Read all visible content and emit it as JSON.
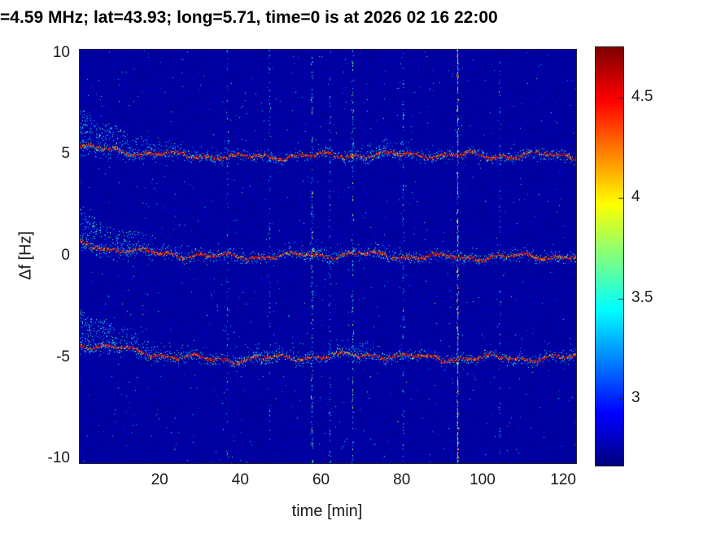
{
  "chart_data": {
    "type": "heatmap",
    "title": "=4.59 MHz;  lat=43.93; long=5.71, time=0 is at 2026 02 16 22:00",
    "xlabel": "time [min]",
    "ylabel": "Δf [Hz]",
    "xlim": [
      0,
      123
    ],
    "ylim": [
      -10.2,
      10.2
    ],
    "xticks": [
      20,
      40,
      60,
      80,
      100,
      120
    ],
    "yticks": [
      10,
      5,
      0,
      -5,
      -10
    ],
    "grid": false,
    "colormap": "jet",
    "colorbar": {
      "vmin": 2.67,
      "vmax": 4.75,
      "ticks": [
        4.5,
        4,
        3.5,
        3
      ],
      "position": "right"
    },
    "background_value": 2.73,
    "traces": [
      {
        "name": "upper-sideband-trace",
        "base_hz": 5,
        "drift_hz": [
          5.45,
          5.2,
          5.05,
          4.95,
          4.92,
          4.95,
          5.0,
          5.02,
          5.05,
          5.0,
          4.98,
          5.02,
          5.0
        ],
        "early_cloud": true,
        "bursts": [
          {
            "t": 74,
            "w": 5,
            "amp": 0.7
          }
        ]
      },
      {
        "name": "carrier-trace",
        "base_hz": 0,
        "drift_hz": [
          0.6,
          0.35,
          0.15,
          0.05,
          0.0,
          0.05,
          0.12,
          0.1,
          0.02,
          -0.03,
          0.0,
          0.02,
          0.0
        ],
        "early_cloud": true,
        "bursts": [
          {
            "t": 58,
            "w": 5,
            "amp": 0.5
          },
          {
            "t": 76,
            "w": 4,
            "amp": 0.4
          }
        ]
      },
      {
        "name": "lower-sideband-trace",
        "base_hz": -5,
        "drift_hz": [
          -4.3,
          -4.55,
          -4.85,
          -5.05,
          -5.08,
          -5.0,
          -4.9,
          -4.85,
          -4.95,
          -5.02,
          -5.0,
          -5.0,
          -4.98
        ],
        "early_cloud": true,
        "bursts": [
          {
            "t": 47,
            "w": 6,
            "amp": 0.5
          },
          {
            "t": 69,
            "w": 5,
            "amp": 0.6
          }
        ]
      }
    ],
    "streaks": [
      {
        "t": 36.5,
        "intensity": 0.18
      },
      {
        "t": 47,
        "intensity": 0.15
      },
      {
        "t": 57.5,
        "intensity": 0.55
      },
      {
        "t": 62,
        "intensity": 0.2
      },
      {
        "t": 67.5,
        "intensity": 0.45
      },
      {
        "t": 80,
        "intensity": 0.15
      },
      {
        "t": 93.5,
        "intensity": 1.0
      },
      {
        "t": 104,
        "intensity": 0.15
      }
    ],
    "noise": {
      "seed": 20260216,
      "speckles": 42000,
      "cyan_dots": 700,
      "bright_dots": 90
    }
  }
}
